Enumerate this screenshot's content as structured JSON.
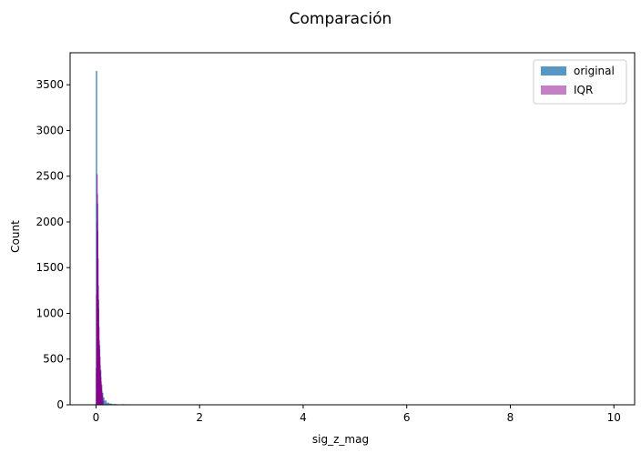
{
  "chart_data": {
    "type": "histogram",
    "title": "Comparación",
    "xlabel": "sig_z_mag",
    "ylabel": "Count",
    "xlim": [
      -0.5,
      10.4
    ],
    "ylim": [
      0,
      3850
    ],
    "xticks": [
      0,
      2,
      4,
      6,
      8,
      10
    ],
    "yticks": [
      0,
      500,
      1000,
      1500,
      2000,
      2500,
      3000,
      3500
    ],
    "legend": {
      "position": "top-right"
    },
    "series": [
      {
        "name": "original",
        "color": "#3a85b9",
        "bins": [
          {
            "x0": 0.0,
            "x1": 0.02,
            "count": 3650
          },
          {
            "x0": 0.02,
            "x1": 0.04,
            "count": 2200
          },
          {
            "x0": 0.04,
            "x1": 0.06,
            "count": 1150
          },
          {
            "x0": 0.06,
            "x1": 0.08,
            "count": 650
          },
          {
            "x0": 0.08,
            "x1": 0.1,
            "count": 380
          },
          {
            "x0": 0.1,
            "x1": 0.12,
            "count": 220
          },
          {
            "x0": 0.12,
            "x1": 0.14,
            "count": 130
          },
          {
            "x0": 0.14,
            "x1": 0.16,
            "count": 80
          },
          {
            "x0": 0.16,
            "x1": 0.2,
            "count": 45
          },
          {
            "x0": 0.2,
            "x1": 0.25,
            "count": 22
          },
          {
            "x0": 0.25,
            "x1": 0.3,
            "count": 12
          },
          {
            "x0": 0.3,
            "x1": 0.4,
            "count": 6
          },
          {
            "x0": 0.4,
            "x1": 0.5,
            "count": 3
          },
          {
            "x0": 0.5,
            "x1": 0.55,
            "count": 5
          },
          {
            "x0": 0.55,
            "x1": 1.0,
            "count": 1
          },
          {
            "x0": 9.95,
            "x1": 10.0,
            "count": 1
          }
        ]
      },
      {
        "name": "IQR",
        "color": "#8b008b",
        "bins": [
          {
            "x0": 0.0,
            "x1": 0.006,
            "count": 400
          },
          {
            "x0": 0.006,
            "x1": 0.012,
            "count": 1200
          },
          {
            "x0": 0.012,
            "x1": 0.018,
            "count": 2000
          },
          {
            "x0": 0.018,
            "x1": 0.024,
            "count": 2520
          },
          {
            "x0": 0.024,
            "x1": 0.03,
            "count": 2300
          },
          {
            "x0": 0.03,
            "x1": 0.036,
            "count": 1900
          },
          {
            "x0": 0.036,
            "x1": 0.042,
            "count": 1600
          },
          {
            "x0": 0.042,
            "x1": 0.048,
            "count": 1300
          },
          {
            "x0": 0.048,
            "x1": 0.054,
            "count": 1050
          },
          {
            "x0": 0.054,
            "x1": 0.06,
            "count": 850
          },
          {
            "x0": 0.06,
            "x1": 0.066,
            "count": 700
          },
          {
            "x0": 0.066,
            "x1": 0.072,
            "count": 600
          },
          {
            "x0": 0.072,
            "x1": 0.078,
            "count": 520
          },
          {
            "x0": 0.078,
            "x1": 0.084,
            "count": 430
          },
          {
            "x0": 0.084,
            "x1": 0.09,
            "count": 360
          },
          {
            "x0": 0.09,
            "x1": 0.096,
            "count": 300
          },
          {
            "x0": 0.096,
            "x1": 0.102,
            "count": 250
          },
          {
            "x0": 0.102,
            "x1": 0.108,
            "count": 200
          },
          {
            "x0": 0.108,
            "x1": 0.114,
            "count": 160
          },
          {
            "x0": 0.114,
            "x1": 0.12,
            "count": 130
          },
          {
            "x0": 0.12,
            "x1": 0.126,
            "count": 100
          },
          {
            "x0": 0.126,
            "x1": 0.132,
            "count": 70
          },
          {
            "x0": 0.132,
            "x1": 0.138,
            "count": 40
          }
        ]
      }
    ]
  }
}
